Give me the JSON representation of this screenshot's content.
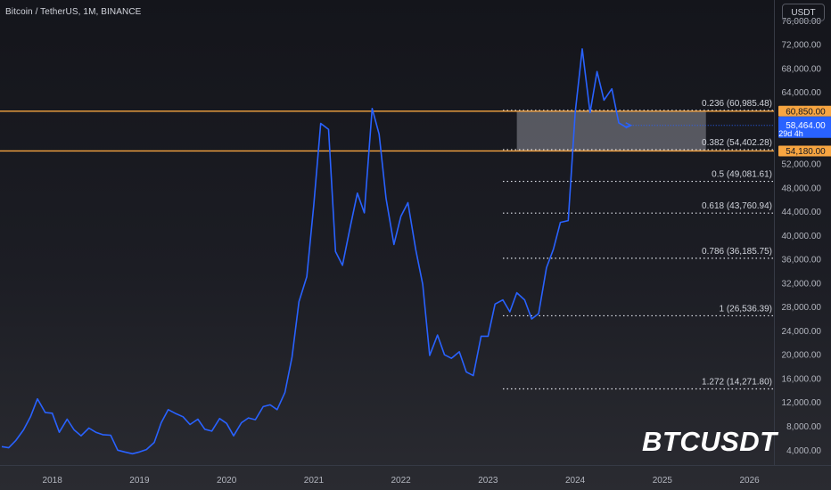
{
  "header": {
    "symbol_title": "Bitcoin / TetherUS, 1M, BINANCE",
    "currency_button": "USDT"
  },
  "watermark": "BTCUSDT",
  "colors": {
    "line": "#2962ff",
    "level_band": "#f7a541",
    "price_badge": "#2962ff",
    "zone_fill": "#9598a1",
    "axis_text": "#b2b5be",
    "fib_text": "#d1d4dc"
  },
  "chart_data": {
    "type": "line",
    "x_ticks": [
      "2018",
      "2019",
      "2020",
      "2021",
      "2022",
      "2023",
      "2024",
      "2025",
      "2026"
    ],
    "y_ticks": [
      "4,000.00",
      "8,000.00",
      "12,000.00",
      "16,000.00",
      "20,000.00",
      "24,000.00",
      "28,000.00",
      "32,000.00",
      "36,000.00",
      "40,000.00",
      "44,000.00",
      "48,000.00",
      "52,000.00",
      "64,000.00",
      "68,000.00",
      "72,000.00",
      "76,000.00"
    ],
    "x_range": [
      2017.4,
      2026.28
    ],
    "y_range": [
      1500,
      79500
    ],
    "series": [
      {
        "x": [
          2017.42,
          2017.5,
          2017.58,
          2017.67,
          2017.75,
          2017.83,
          2017.92,
          2018.0,
          2018.08,
          2018.17,
          2018.25,
          2018.33,
          2018.42,
          2018.5,
          2018.58,
          2018.67,
          2018.75,
          2018.83,
          2018.92,
          2019.0,
          2019.08,
          2019.17,
          2019.25,
          2019.33,
          2019.42,
          2019.5,
          2019.58,
          2019.67,
          2019.75,
          2019.83,
          2019.92,
          2020.0,
          2020.08,
          2020.17,
          2020.25,
          2020.33,
          2020.42,
          2020.5,
          2020.58,
          2020.67,
          2020.75,
          2020.83,
          2020.92,
          2021.0,
          2021.08,
          2021.17,
          2021.25,
          2021.33,
          2021.42,
          2021.5,
          2021.58,
          2021.67,
          2021.75,
          2021.83,
          2021.92,
          2022.0,
          2022.08,
          2022.17,
          2022.25,
          2022.33,
          2022.42,
          2022.5,
          2022.58,
          2022.67,
          2022.75,
          2022.83,
          2022.92,
          2023.0,
          2023.08,
          2023.17,
          2023.25,
          2023.33,
          2023.42,
          2023.5,
          2023.58,
          2023.67,
          2023.75,
          2023.83,
          2023.92,
          2024.0,
          2024.08,
          2024.17,
          2024.25,
          2024.33,
          2024.42,
          2024.5,
          2024.58,
          2024.63
        ],
        "values": [
          4600,
          4400,
          5600,
          7400,
          9600,
          12600,
          10300,
          10200,
          7000,
          9200,
          7400,
          6400,
          7700,
          7000,
          6600,
          6500,
          4000,
          3700,
          3400,
          3700,
          4100,
          5300,
          8600,
          10800,
          10100,
          9600,
          8300,
          9200,
          7500,
          7200,
          9300,
          8500,
          6400,
          8600,
          9400,
          9100,
          11300,
          11600,
          10800,
          13700,
          19600,
          28900,
          33100,
          45100,
          58800,
          57800,
          37300,
          35000,
          41500,
          47100,
          43800,
          61300,
          57000,
          46200,
          38500,
          43200,
          45500,
          37600,
          31800,
          19900,
          23300,
          20000,
          19400,
          20500,
          17100,
          16500,
          23100,
          23100,
          28500,
          29200,
          27200,
          30400,
          29200,
          26000,
          26900,
          34600,
          37700,
          42200,
          42500,
          60600,
          71300,
          60600,
          67500,
          62700,
          64600,
          58900,
          58200,
          58464
        ],
        "last_price": "58,464.00",
        "countdown": "29d 4h"
      }
    ],
    "horizontal_levels": [
      {
        "value": 60850,
        "label": "60,850.00"
      },
      {
        "value": 54180,
        "label": "54,180.00"
      }
    ],
    "fib_levels": [
      {
        "value": 60985.48,
        "label": "0.236 (60,985.48)"
      },
      {
        "value": 54402.28,
        "label": "0.382 (54,402.28)"
      },
      {
        "value": 49081.61,
        "label": "0.5 (49,081.61)"
      },
      {
        "value": 43760.94,
        "label": "0.618 (43,760.94)"
      },
      {
        "value": 36185.75,
        "label": "0.786 (36,185.75)"
      },
      {
        "value": 26536.39,
        "label": "1 (26,536.39)"
      },
      {
        "value": 14271.8,
        "label": "1.272 (14,271.80)"
      }
    ],
    "fib_start_x": 2023.17,
    "highlight_zone": {
      "x": [
        2023.33,
        2025.5
      ],
      "y": [
        54180,
        60850
      ]
    }
  }
}
